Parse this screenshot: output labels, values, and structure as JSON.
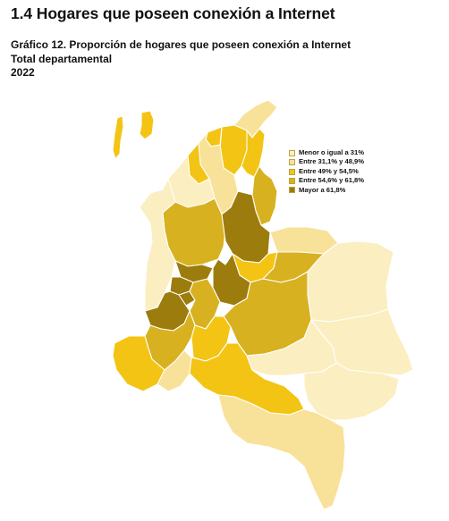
{
  "section_title": "1.4 Hogares que poseen conexión a Internet",
  "chart": {
    "title_line1": "Gráfico 12. Proporción de hogares que poseen conexión a Internet",
    "title_line2": "Total departamental",
    "title_line3": "2022"
  },
  "legend": {
    "items": [
      {
        "label": "Menor o igual a 31%",
        "color": "#fbeec0"
      },
      {
        "label": "Entre 31,1% y 48,9%",
        "color": "#f8e198"
      },
      {
        "label": "Entre 49% y 54,5%",
        "color": "#f3c414"
      },
      {
        "label": "Entre 54,6% y 61,8%",
        "color": "#d8b120"
      },
      {
        "label": "Mayor a 61,8%",
        "color": "#9c7c0c"
      }
    ]
  },
  "map": {
    "classes": {
      "c1": "#fbeec0",
      "c2": "#f8e198",
      "c3": "#f3c414",
      "c4": "#d8b120",
      "c5": "#9c7c0c"
    }
  }
}
